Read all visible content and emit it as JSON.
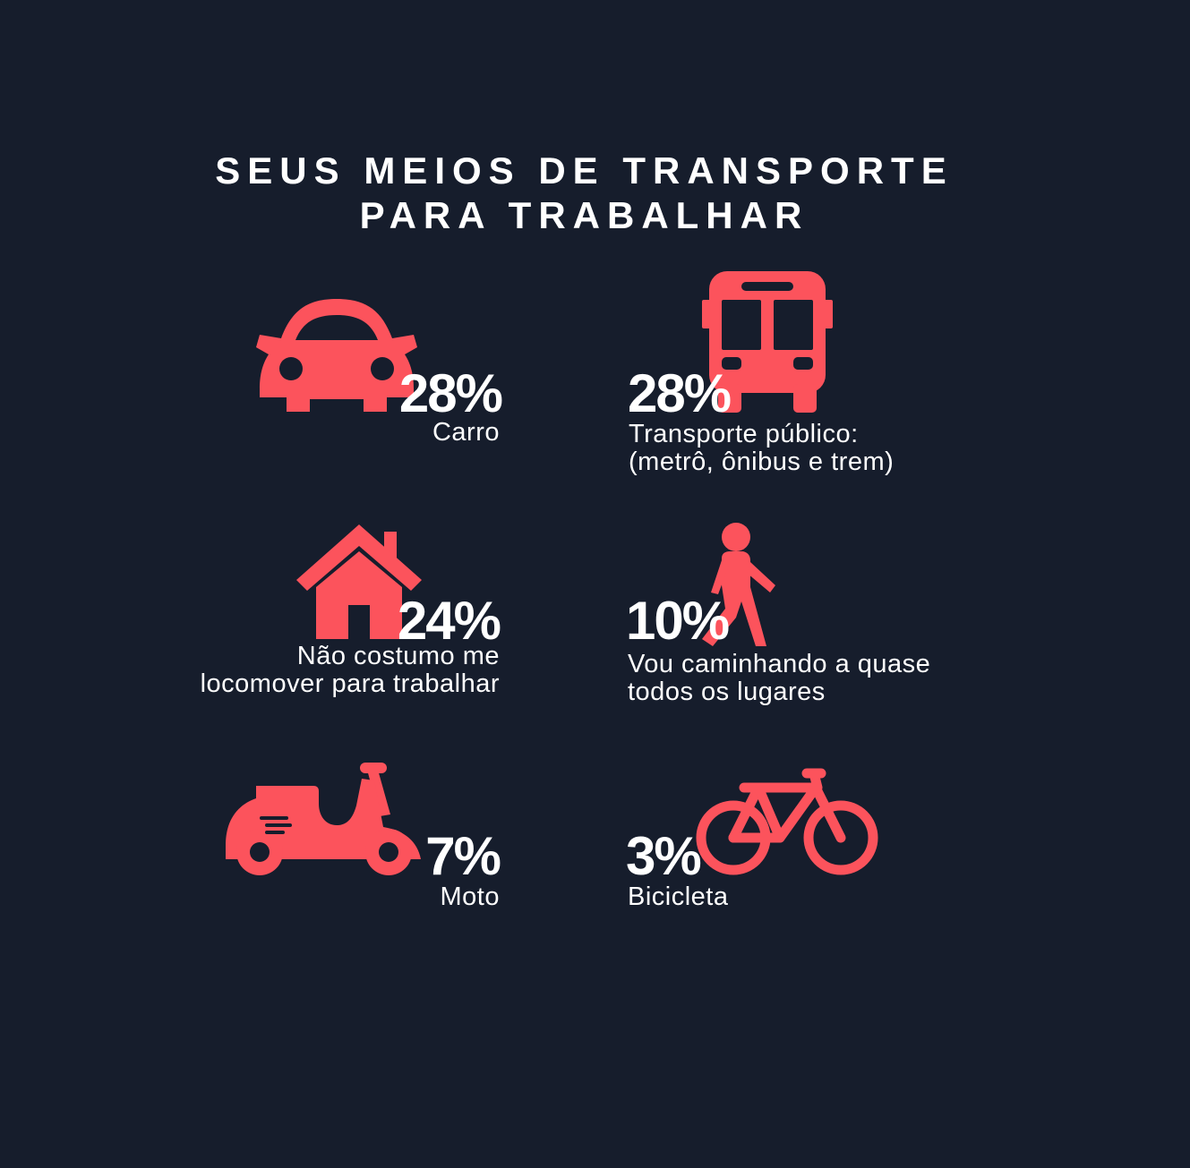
{
  "title": {
    "line1": "SEUS MEIOS DE TRANSPORTE",
    "line2": "PARA TRABALHAR"
  },
  "accent_color": "#fc535c",
  "background_color": "#161d2c",
  "items": [
    {
      "icon": "car-icon",
      "percent": "28%",
      "label_lines": [
        "Carro"
      ]
    },
    {
      "icon": "bus-icon",
      "percent": "28%",
      "label_lines": [
        "Transporte público:",
        "(metrô, ônibus e trem)"
      ]
    },
    {
      "icon": "house-icon",
      "percent": "24%",
      "label_lines": [
        "Não costumo me",
        "locomover para trabalhar"
      ]
    },
    {
      "icon": "walking-person-icon",
      "percent": "10%",
      "label_lines": [
        "Vou caminhando a quase",
        "todos os lugares"
      ]
    },
    {
      "icon": "scooter-icon",
      "percent": "7%",
      "label_lines": [
        "Moto"
      ]
    },
    {
      "icon": "bicycle-icon",
      "percent": "3%",
      "label_lines": [
        "Bicicleta"
      ]
    }
  ]
}
